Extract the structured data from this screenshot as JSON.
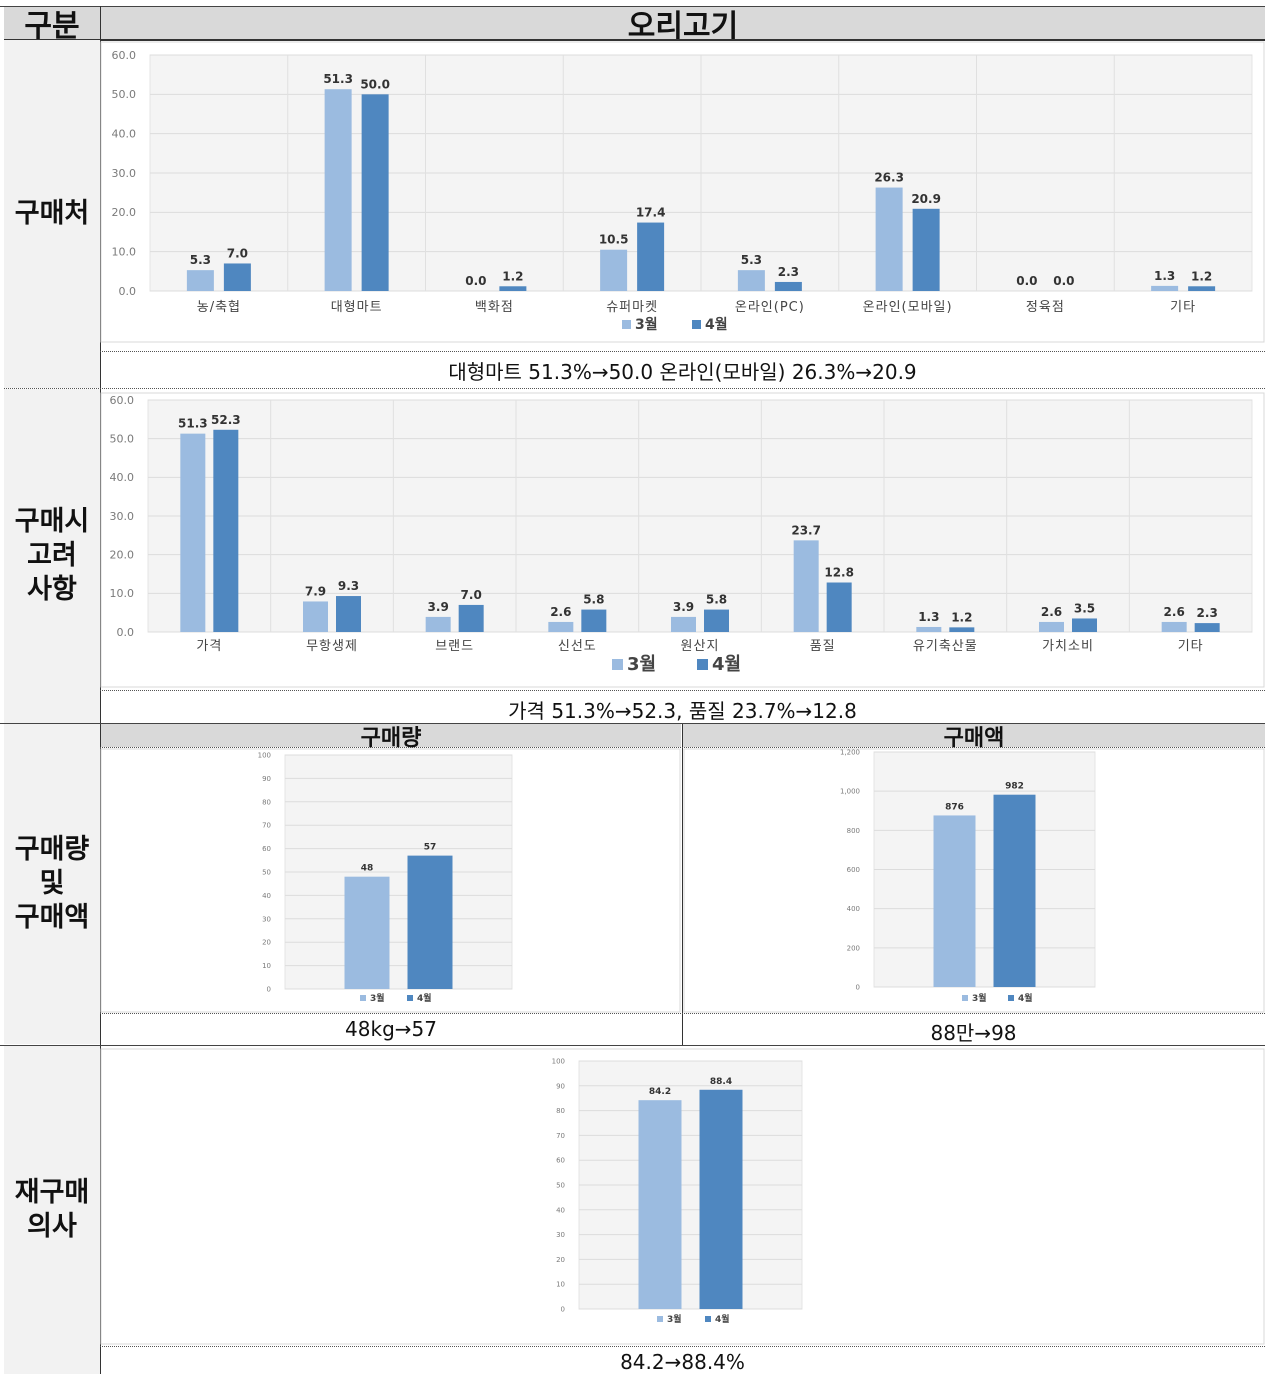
{
  "header": {
    "col1": "구분",
    "col2": "오리고기"
  },
  "colors": {
    "march": "#9bbbe0",
    "april": "#4f87c0",
    "grid": "#dcdcdc",
    "label_bg": "#f2f2f2",
    "header_bg": "#d9d9d9"
  },
  "rows": {
    "purchase_place": {
      "label": "구매처",
      "summary": "대형마트  51.3%→50.0  온라인(모바일)  26.3%→20.9"
    },
    "considerations": {
      "label": "구매시\n고려\n사항",
      "summary": "가격  51.3%→52.3,  품질  23.7%→12.8"
    },
    "volume_amount": {
      "label": "구매량\n및\n구매액",
      "volume_header": "구매량",
      "amount_header": "구매액",
      "volume_summary": "48kg→57",
      "amount_summary": "88만→98"
    },
    "repurchase": {
      "label": "재구매\n의사",
      "summary": "84.2→88.4%"
    }
  },
  "chart_data": [
    {
      "type": "bar",
      "categories": [
        "농/축협",
        "대형마트",
        "백화점",
        "슈퍼마켓",
        "온라인(PC)",
        "온라인(모바일)",
        "정육점",
        "기타"
      ],
      "series": [
        {
          "name": "3월",
          "values": [
            5.3,
            51.3,
            0.0,
            10.5,
            5.3,
            26.3,
            0.0,
            1.3
          ]
        },
        {
          "name": "4월",
          "values": [
            7.0,
            50.0,
            1.2,
            17.4,
            2.3,
            20.9,
            0.0,
            1.2
          ]
        }
      ],
      "ylim": [
        0,
        60
      ],
      "yticks": [
        "0.0",
        "10.0",
        "20.0",
        "30.0",
        "40.0",
        "50.0",
        "60.0"
      ],
      "legend": "bottom"
    },
    {
      "type": "bar",
      "categories": [
        "가격",
        "무항생제",
        "브랜드",
        "신선도",
        "원산지",
        "품질",
        "유기축산물",
        "가치소비",
        "기타"
      ],
      "series": [
        {
          "name": "3월",
          "values": [
            51.3,
            7.9,
            3.9,
            2.6,
            3.9,
            23.7,
            1.3,
            2.6,
            2.6
          ]
        },
        {
          "name": "4월",
          "values": [
            52.3,
            9.3,
            7.0,
            5.8,
            5.8,
            12.8,
            1.2,
            3.5,
            2.3
          ]
        }
      ],
      "ylim": [
        0,
        60
      ],
      "yticks": [
        "0.0",
        "10.0",
        "20.0",
        "30.0",
        "40.0",
        "50.0",
        "60.0"
      ],
      "legend": "bottom"
    },
    {
      "type": "bar",
      "categories": [
        ""
      ],
      "series": [
        {
          "name": "3월",
          "values": [
            48
          ]
        },
        {
          "name": "4월",
          "values": [
            57
          ]
        }
      ],
      "ylim": [
        0,
        100
      ],
      "yticks": [
        "0",
        "10",
        "20",
        "30",
        "40",
        "50",
        "60",
        "70",
        "80",
        "90",
        "100"
      ],
      "legend": "bottom"
    },
    {
      "type": "bar",
      "categories": [
        ""
      ],
      "series": [
        {
          "name": "3월",
          "values": [
            876
          ]
        },
        {
          "name": "4월",
          "values": [
            982
          ]
        }
      ],
      "ylim": [
        0,
        1200
      ],
      "yticks": [
        "0",
        "200",
        "400",
        "600",
        "800",
        "1,000",
        "1,200"
      ],
      "legend": "bottom"
    },
    {
      "type": "bar",
      "categories": [
        ""
      ],
      "series": [
        {
          "name": "3월",
          "values": [
            84.2
          ]
        },
        {
          "name": "4월",
          "values": [
            88.4
          ]
        }
      ],
      "ylim": [
        0,
        100
      ],
      "yticks": [
        "0",
        "10",
        "20",
        "30",
        "40",
        "50",
        "60",
        "70",
        "80",
        "90",
        "100"
      ],
      "legend": "bottom"
    }
  ]
}
